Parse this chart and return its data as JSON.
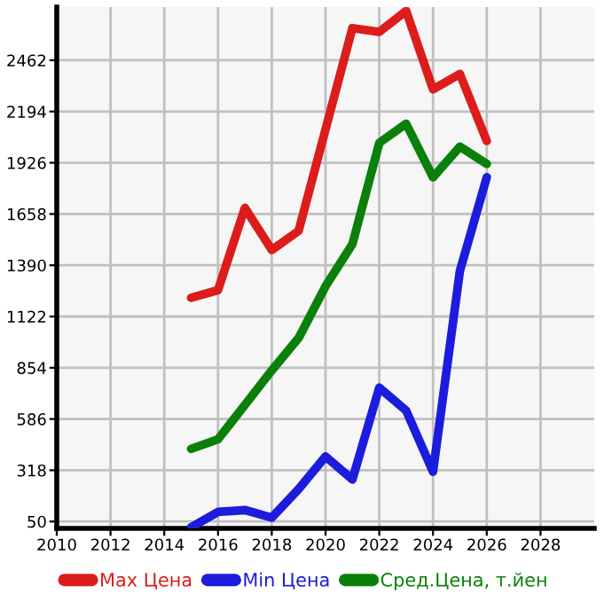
{
  "chart_data": {
    "type": "line",
    "x": [
      2015,
      2016,
      2017,
      2018,
      2019,
      2020,
      2021,
      2022,
      2023,
      2024,
      2025,
      2026
    ],
    "series": [
      {
        "name": "Max Цена",
        "color": "#dd1c1c",
        "values": [
          1220,
          1260,
          1690,
          1470,
          1570,
          2100,
          2630,
          2610,
          2720,
          2310,
          2390,
          2040
        ]
      },
      {
        "name": "Min Цена",
        "color": "#1c1cdd",
        "values": [
          20,
          100,
          110,
          70,
          220,
          390,
          270,
          750,
          630,
          310,
          1360,
          1850
        ]
      },
      {
        "name": "Сред.Цена, т.йен",
        "color": "#0a800a",
        "values": [
          430,
          480,
          660,
          840,
          1010,
          1280,
          1500,
          2030,
          2130,
          1850,
          2010,
          1920
        ]
      }
    ],
    "xlim": [
      2010,
      2030
    ],
    "xticks": [
      2010,
      2012,
      2014,
      2016,
      2018,
      2020,
      2022,
      2024,
      2026,
      2028
    ],
    "ylim": [
      14,
      2740
    ],
    "yticks": [
      50,
      318,
      586,
      854,
      1122,
      1390,
      1658,
      1926,
      2194,
      2462
    ],
    "grid": true,
    "legend": "bottom",
    "marker": "none",
    "line_style": "solid"
  }
}
